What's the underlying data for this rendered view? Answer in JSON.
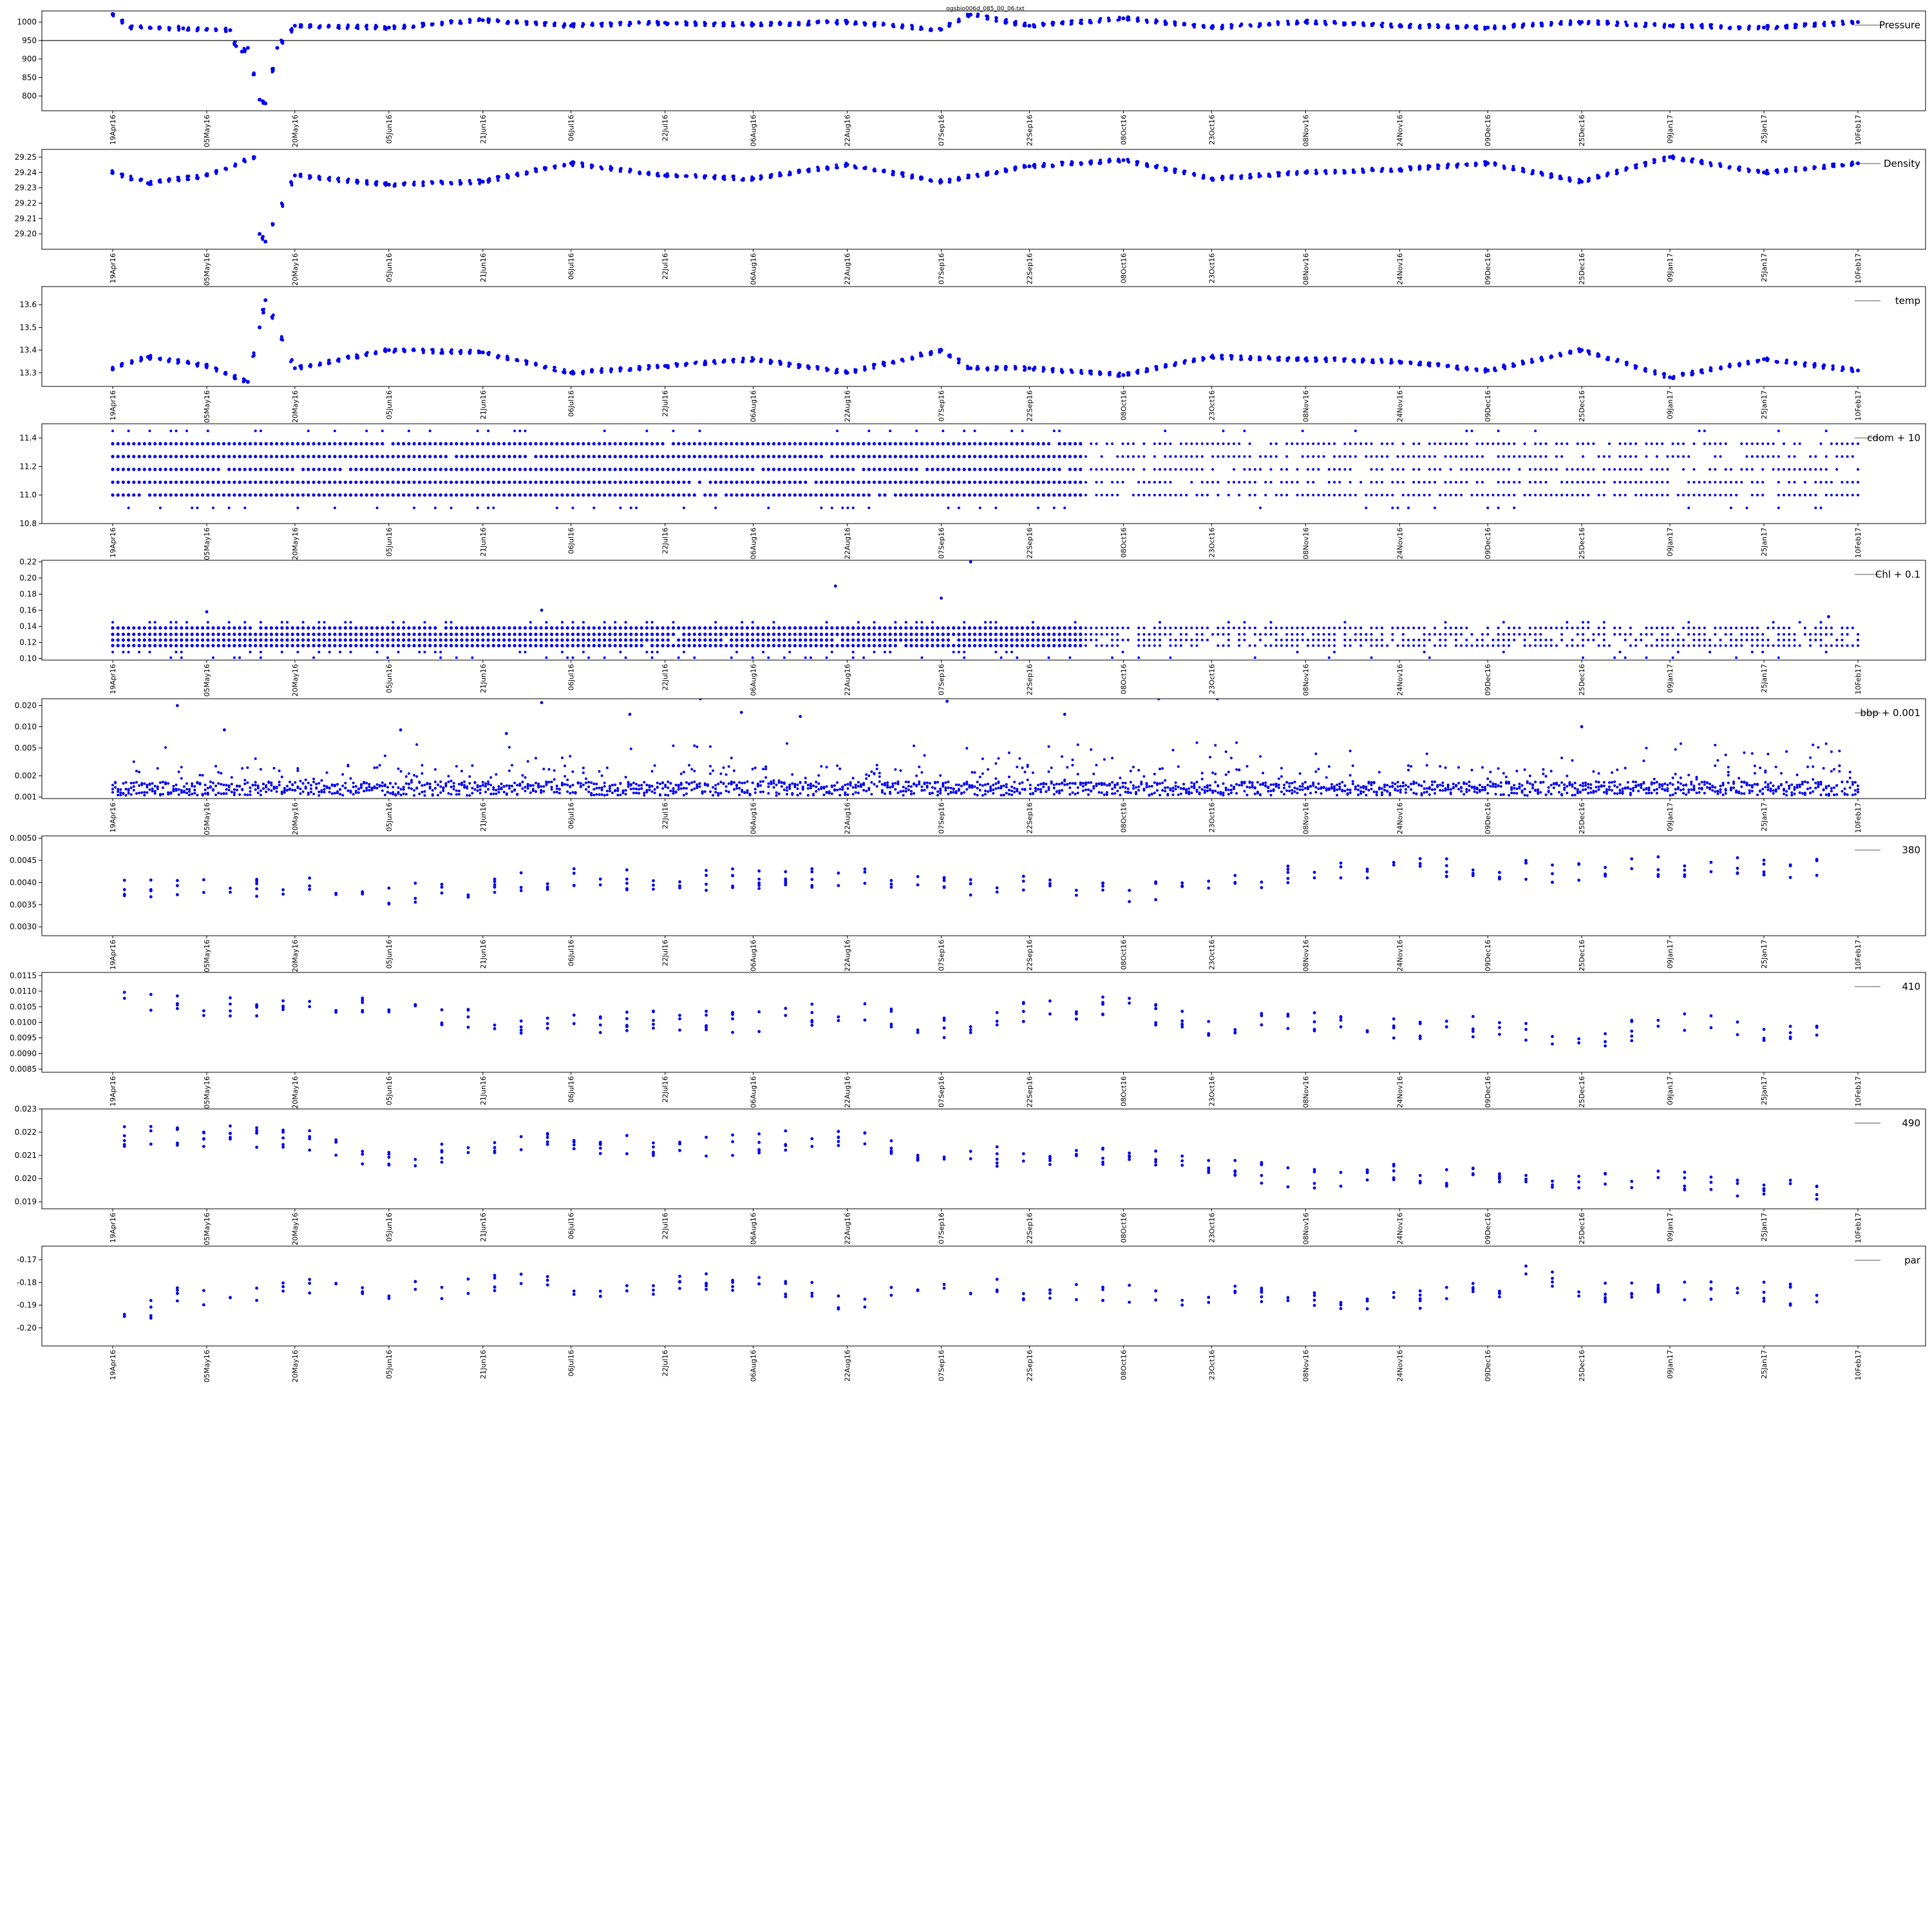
{
  "title": "ogsbio006d_085_00_06.txt",
  "marker_color": "#0000ee",
  "x_start": "2016-04-19",
  "x_end": "2017-02-10",
  "x_ticks": [
    "19Apr16",
    "05May16",
    "20May16",
    "05Jun16",
    "21Jun16",
    "06Jul16",
    "22Jul16",
    "06Aug16",
    "22Aug16",
    "07Sep16",
    "22Sep16",
    "08Oct16",
    "23Oct16",
    "08Nov16",
    "24Nov16",
    "09Dec16",
    "25Dec16",
    "09Jan17",
    "25Jan17",
    "10Feb17"
  ],
  "chart_data": [
    {
      "type": "scatter",
      "legend": "Pressure",
      "ylim": [
        760,
        1030
      ],
      "yticks": [
        "1000",
        "950",
        "900",
        "850",
        "800"
      ],
      "hline": 950,
      "key_points": [
        {
          "x": "2016-04-19",
          "y": 1020
        },
        {
          "x": "2016-04-22",
          "y": 985
        },
        {
          "x": "2016-05-01",
          "y": 983
        },
        {
          "x": "2016-05-09",
          "y": 978
        },
        {
          "x": "2016-05-10",
          "y": 935
        },
        {
          "x": "2016-05-11",
          "y": 920
        },
        {
          "x": "2016-05-12",
          "y": 930
        },
        {
          "x": "2016-05-13",
          "y": 860
        },
        {
          "x": "2016-05-14",
          "y": 790
        },
        {
          "x": "2016-05-15",
          "y": 780
        },
        {
          "x": "2016-05-17",
          "y": 930
        },
        {
          "x": "2016-05-20",
          "y": 990
        },
        {
          "x": "2016-06-05",
          "y": 985
        },
        {
          "x": "2016-06-21",
          "y": 1005
        },
        {
          "x": "2016-07-06",
          "y": 990
        },
        {
          "x": "2016-07-22",
          "y": 998
        },
        {
          "x": "2016-08-06",
          "y": 993
        },
        {
          "x": "2016-08-22",
          "y": 1000
        },
        {
          "x": "2016-09-07",
          "y": 980
        },
        {
          "x": "2016-09-12",
          "y": 1020
        },
        {
          "x": "2016-09-22",
          "y": 990
        },
        {
          "x": "2016-10-08",
          "y": 1010
        },
        {
          "x": "2016-10-23",
          "y": 985
        },
        {
          "x": "2016-11-08",
          "y": 1000
        },
        {
          "x": "2016-11-24",
          "y": 990
        },
        {
          "x": "2016-12-09",
          "y": 985
        },
        {
          "x": "2016-12-25",
          "y": 1000
        },
        {
          "x": "2017-01-09",
          "y": 990
        },
        {
          "x": "2017-01-25",
          "y": 985
        },
        {
          "x": "2017-02-10",
          "y": 1000
        }
      ]
    },
    {
      "type": "scatter",
      "legend": "Density",
      "ylim": [
        29.19,
        29.255
      ],
      "yticks": [
        "29.25",
        "29.24",
        "29.23",
        "29.22",
        "29.21",
        "29.20"
      ],
      "key_points": [
        {
          "x": "2016-04-19",
          "y": 29.24
        },
        {
          "x": "2016-04-25",
          "y": 29.233
        },
        {
          "x": "2016-05-05",
          "y": 29.238
        },
        {
          "x": "2016-05-13",
          "y": 29.25
        },
        {
          "x": "2016-05-14",
          "y": 29.2
        },
        {
          "x": "2016-05-15",
          "y": 29.195
        },
        {
          "x": "2016-05-20",
          "y": 29.238
        },
        {
          "x": "2016-06-05",
          "y": 29.232
        },
        {
          "x": "2016-06-21",
          "y": 29.234
        },
        {
          "x": "2016-07-06",
          "y": 29.246
        },
        {
          "x": "2016-07-22",
          "y": 29.238
        },
        {
          "x": "2016-08-06",
          "y": 29.236
        },
        {
          "x": "2016-08-22",
          "y": 29.245
        },
        {
          "x": "2016-09-07",
          "y": 29.234
        },
        {
          "x": "2016-09-22",
          "y": 29.244
        },
        {
          "x": "2016-10-08",
          "y": 29.248
        },
        {
          "x": "2016-10-23",
          "y": 29.236
        },
        {
          "x": "2016-11-08",
          "y": 29.24
        },
        {
          "x": "2016-11-24",
          "y": 29.242
        },
        {
          "x": "2016-12-09",
          "y": 29.246
        },
        {
          "x": "2016-12-25",
          "y": 29.234
        },
        {
          "x": "2017-01-09",
          "y": 29.25
        },
        {
          "x": "2017-01-25",
          "y": 29.24
        },
        {
          "x": "2017-02-10",
          "y": 29.246
        }
      ]
    },
    {
      "type": "scatter",
      "legend": "temp",
      "ylim": [
        13.24,
        13.68
      ],
      "yticks": [
        "13.6",
        "13.5",
        "13.4",
        "13.3"
      ],
      "key_points": [
        {
          "x": "2016-04-19",
          "y": 13.32
        },
        {
          "x": "2016-04-25",
          "y": 13.37
        },
        {
          "x": "2016-05-05",
          "y": 13.33
        },
        {
          "x": "2016-05-12",
          "y": 13.26
        },
        {
          "x": "2016-05-14",
          "y": 13.5
        },
        {
          "x": "2016-05-15",
          "y": 13.62
        },
        {
          "x": "2016-05-20",
          "y": 13.32
        },
        {
          "x": "2016-06-05",
          "y": 13.4
        },
        {
          "x": "2016-06-21",
          "y": 13.39
        },
        {
          "x": "2016-07-06",
          "y": 13.3
        },
        {
          "x": "2016-07-22",
          "y": 13.33
        },
        {
          "x": "2016-08-06",
          "y": 13.36
        },
        {
          "x": "2016-08-22",
          "y": 13.3
        },
        {
          "x": "2016-09-07",
          "y": 13.4
        },
        {
          "x": "2016-09-12",
          "y": 13.32
        },
        {
          "x": "2016-09-22",
          "y": 13.32
        },
        {
          "x": "2016-10-08",
          "y": 13.29
        },
        {
          "x": "2016-10-23",
          "y": 13.37
        },
        {
          "x": "2016-11-08",
          "y": 13.36
        },
        {
          "x": "2016-11-24",
          "y": 13.35
        },
        {
          "x": "2016-12-09",
          "y": 13.31
        },
        {
          "x": "2016-12-25",
          "y": 13.4
        },
        {
          "x": "2017-01-09",
          "y": 13.28
        },
        {
          "x": "2017-01-25",
          "y": 13.36
        },
        {
          "x": "2017-02-10",
          "y": 13.31
        }
      ]
    },
    {
      "type": "scatter",
      "legend": "cdom + 10",
      "ylim": [
        10.8,
        11.5
      ],
      "yticks": [
        "11.4",
        "11.2",
        "11.0",
        "10.8"
      ],
      "levels": [
        10.91,
        11.0,
        11.09,
        11.18,
        11.27,
        11.36,
        11.45
      ],
      "dense_levels": [
        11.0,
        11.09,
        11.18,
        11.27,
        11.36
      ],
      "dense_until": "2016-10-01"
    },
    {
      "type": "scatter",
      "legend": "Chl + 0.1",
      "ylim": [
        0.098,
        0.222
      ],
      "yticks": [
        "0.22",
        "0.20",
        "0.18",
        "0.16",
        "0.14",
        "0.12",
        "0.10"
      ],
      "levels": [
        0.101,
        0.108,
        0.116,
        0.123,
        0.13,
        0.138,
        0.145
      ],
      "dense_levels": [
        0.116,
        0.123,
        0.13,
        0.138
      ],
      "dense_until": "2016-10-01",
      "outliers": [
        {
          "x": "2016-08-20",
          "y": 0.19
        },
        {
          "x": "2016-09-12",
          "y": 0.22
        },
        {
          "x": "2016-09-07",
          "y": 0.175
        },
        {
          "x": "2016-07-01",
          "y": 0.16
        },
        {
          "x": "2016-05-05",
          "y": 0.158
        },
        {
          "x": "2017-02-05",
          "y": 0.152
        }
      ]
    },
    {
      "type": "scatter",
      "legend": "bbp + 0.001",
      "yscale": "log",
      "ylim": [
        0.00095,
        0.025
      ],
      "yticks": [
        "0.020",
        "0.010",
        "0.005",
        "0.002",
        "0.001"
      ],
      "outliers": [
        {
          "x": "2016-04-30",
          "y": 0.02
        },
        {
          "x": "2016-07-01",
          "y": 0.022
        },
        {
          "x": "2016-07-16",
          "y": 0.015
        },
        {
          "x": "2016-07-28",
          "y": 0.025
        },
        {
          "x": "2016-08-04",
          "y": 0.016
        },
        {
          "x": "2016-08-14",
          "y": 0.014
        },
        {
          "x": "2016-09-08",
          "y": 0.023
        },
        {
          "x": "2016-09-28",
          "y": 0.015
        },
        {
          "x": "2016-10-14",
          "y": 0.025
        },
        {
          "x": "2016-10-24",
          "y": 0.025
        },
        {
          "x": "2016-12-25",
          "y": 0.01
        },
        {
          "x": "2016-06-07",
          "y": 0.009
        },
        {
          "x": "2016-06-25",
          "y": 0.008
        },
        {
          "x": "2016-05-08",
          "y": 0.009
        }
      ]
    },
    {
      "type": "scatter",
      "legend": "380",
      "ylim": [
        0.0028,
        0.00505
      ],
      "yticks": [
        "0.0050",
        "0.0045",
        "0.0040",
        "0.0035",
        "0.0030"
      ],
      "key_points": [
        {
          "x": "2016-04-19",
          "y": 0.0039
        },
        {
          "x": "2016-05-01",
          "y": 0.0038
        },
        {
          "x": "2016-05-20",
          "y": 0.004
        },
        {
          "x": "2016-06-05",
          "y": 0.0037
        },
        {
          "x": "2016-06-21",
          "y": 0.0039
        },
        {
          "x": "2016-07-06",
          "y": 0.0041
        },
        {
          "x": "2016-07-22",
          "y": 0.004
        },
        {
          "x": "2016-08-06",
          "y": 0.0041
        },
        {
          "x": "2016-08-22",
          "y": 0.0041
        },
        {
          "x": "2016-09-07",
          "y": 0.0039
        },
        {
          "x": "2016-09-22",
          "y": 0.004
        },
        {
          "x": "2016-10-08",
          "y": 0.0038
        },
        {
          "x": "2016-10-23",
          "y": 0.0039
        },
        {
          "x": "2016-11-08",
          "y": 0.0042
        },
        {
          "x": "2016-11-24",
          "y": 0.0043
        },
        {
          "x": "2016-12-09",
          "y": 0.0043
        },
        {
          "x": "2016-12-25",
          "y": 0.0042
        },
        {
          "x": "2017-01-09",
          "y": 0.0044
        },
        {
          "x": "2017-01-25",
          "y": 0.0043
        },
        {
          "x": "2017-02-08",
          "y": 0.0043
        }
      ]
    },
    {
      "type": "scatter",
      "legend": "410",
      "ylim": [
        0.0084,
        0.0116
      ],
      "yticks": [
        "0.0115",
        "0.0110",
        "0.0105",
        "0.0100",
        "0.0095",
        "0.0090",
        "0.0085"
      ],
      "key_points": [
        {
          "x": "2016-04-19",
          "y": 0.0108
        },
        {
          "x": "2016-05-05",
          "y": 0.0105
        },
        {
          "x": "2016-05-20",
          "y": 0.0104
        },
        {
          "x": "2016-06-05",
          "y": 0.0105
        },
        {
          "x": "2016-06-21",
          "y": 0.01
        },
        {
          "x": "2016-07-06",
          "y": 0.0099
        },
        {
          "x": "2016-07-22",
          "y": 0.0101
        },
        {
          "x": "2016-08-06",
          "y": 0.01
        },
        {
          "x": "2016-08-22",
          "y": 0.0104
        },
        {
          "x": "2016-09-07",
          "y": 0.0098
        },
        {
          "x": "2016-09-22",
          "y": 0.0104
        },
        {
          "x": "2016-10-08",
          "y": 0.0105
        },
        {
          "x": "2016-10-23",
          "y": 0.0098
        },
        {
          "x": "2016-11-08",
          "y": 0.0101
        },
        {
          "x": "2016-11-24",
          "y": 0.0098
        },
        {
          "x": "2016-12-09",
          "y": 0.0099
        },
        {
          "x": "2016-12-25",
          "y": 0.0093
        },
        {
          "x": "2017-01-09",
          "y": 0.0101
        },
        {
          "x": "2017-01-25",
          "y": 0.0096
        },
        {
          "x": "2017-02-08",
          "y": 0.0095
        }
      ]
    },
    {
      "type": "scatter",
      "legend": "490",
      "ylim": [
        0.0187,
        0.023
      ],
      "yticks": [
        "0.023",
        "0.022",
        "0.021",
        "0.020",
        "0.019"
      ],
      "key_points": [
        {
          "x": "2016-04-19",
          "y": 0.0218
        },
        {
          "x": "2016-05-05",
          "y": 0.0218
        },
        {
          "x": "2016-05-20",
          "y": 0.0218
        },
        {
          "x": "2016-06-05",
          "y": 0.0208
        },
        {
          "x": "2016-06-21",
          "y": 0.0212
        },
        {
          "x": "2016-07-06",
          "y": 0.0216
        },
        {
          "x": "2016-07-22",
          "y": 0.0213
        },
        {
          "x": "2016-08-06",
          "y": 0.0215
        },
        {
          "x": "2016-08-22",
          "y": 0.0218
        },
        {
          "x": "2016-09-07",
          "y": 0.021
        },
        {
          "x": "2016-09-22",
          "y": 0.021
        },
        {
          "x": "2016-10-08",
          "y": 0.021
        },
        {
          "x": "2016-10-23",
          "y": 0.0205
        },
        {
          "x": "2016-11-08",
          "y": 0.02
        },
        {
          "x": "2016-11-24",
          "y": 0.0202
        },
        {
          "x": "2016-12-09",
          "y": 0.02
        },
        {
          "x": "2016-12-25",
          "y": 0.0198
        },
        {
          "x": "2017-01-09",
          "y": 0.02
        },
        {
          "x": "2017-01-25",
          "y": 0.0195
        },
        {
          "x": "2017-02-08",
          "y": 0.0194
        }
      ]
    },
    {
      "type": "scatter",
      "legend": "par",
      "ylim": [
        -0.208,
        -0.164
      ],
      "yticks": [
        "-0.17",
        "-0.18",
        "-0.19",
        "-0.20"
      ],
      "key_points": [
        {
          "x": "2016-04-19",
          "y": -0.198
        },
        {
          "x": "2016-05-01",
          "y": -0.186
        },
        {
          "x": "2016-05-20",
          "y": -0.182
        },
        {
          "x": "2016-06-05",
          "y": -0.186
        },
        {
          "x": "2016-06-21",
          "y": -0.18
        },
        {
          "x": "2016-07-06",
          "y": -0.182
        },
        {
          "x": "2016-07-22",
          "y": -0.182
        },
        {
          "x": "2016-08-06",
          "y": -0.178
        },
        {
          "x": "2016-08-22",
          "y": -0.188
        },
        {
          "x": "2016-09-07",
          "y": -0.18
        },
        {
          "x": "2016-09-22",
          "y": -0.184
        },
        {
          "x": "2016-10-08",
          "y": -0.186
        },
        {
          "x": "2016-10-23",
          "y": -0.186
        },
        {
          "x": "2016-11-08",
          "y": -0.186
        },
        {
          "x": "2016-11-24",
          "y": -0.188
        },
        {
          "x": "2016-12-09",
          "y": -0.184
        },
        {
          "x": "2016-12-17",
          "y": -0.175
        },
        {
          "x": "2016-12-25",
          "y": -0.184
        },
        {
          "x": "2017-01-09",
          "y": -0.184
        },
        {
          "x": "2017-01-25",
          "y": -0.184
        },
        {
          "x": "2017-02-08",
          "y": -0.188
        }
      ]
    }
  ]
}
